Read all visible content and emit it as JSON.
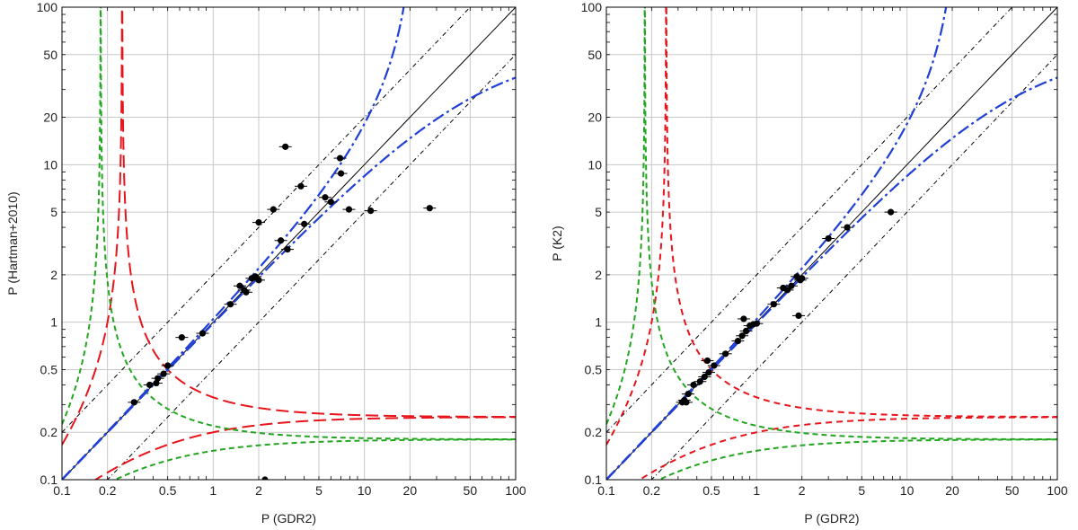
{
  "figure": {
    "description_title": ""
  },
  "colors": {
    "grid": "#c8c8c8",
    "frame": "#000000",
    "identity": "#000000",
    "harmonic": "#000000",
    "red": "#e8141b",
    "green": "#22a61f",
    "blue": "#1f3fd6",
    "points": "#000000"
  },
  "chart_data": [
    {
      "type": "scatter",
      "id": "left",
      "title": "",
      "xlabel": "P (GDR2)",
      "ylabel": "P (Hartman+2010)",
      "xscale": "log",
      "yscale": "log",
      "xlim": [
        0.1,
        100
      ],
      "ylim": [
        0.1,
        100
      ],
      "xticks": [
        0.1,
        0.2,
        0.5,
        1,
        2,
        5,
        10,
        20,
        50,
        100
      ],
      "xtick_labels": [
        "0.1",
        "0.2",
        "0.5",
        "1",
        "2",
        "5",
        "10",
        "20",
        "50",
        "100"
      ],
      "yticks": [
        0.1,
        0.2,
        0.5,
        1,
        2,
        5,
        10,
        20,
        50,
        100
      ],
      "ytick_labels": [
        "0.1",
        "0.2",
        "0.5",
        "1",
        "2",
        "5",
        "10",
        "20",
        "50",
        "100"
      ],
      "grid": true,
      "alias_frequencies": {
        "red_per_day": 4.0,
        "green_per_day": 5.55
      },
      "curves": [
        {
          "name": "y = x",
          "style": "solid",
          "color": "black"
        },
        {
          "name": "y = 2x / y = x/2 harmonics",
          "style": "dash-dot",
          "color": "black"
        },
        {
          "name": "beat alias 1/|1/x ± 1/0.25|",
          "style": "long-dash",
          "color": "red"
        },
        {
          "name": "beat alias 1/|1/x ± 1/0.18|",
          "style": "short-dash",
          "color": "green"
        },
        {
          "name": "spin-orbit branches",
          "style": "dash-dot-long",
          "color": "blue"
        }
      ],
      "points": [
        {
          "x": 0.3,
          "y": 0.31
        },
        {
          "x": 0.38,
          "y": 0.4
        },
        {
          "x": 0.42,
          "y": 0.41
        },
        {
          "x": 0.43,
          "y": 0.44
        },
        {
          "x": 0.47,
          "y": 0.47
        },
        {
          "x": 0.5,
          "y": 0.53
        },
        {
          "x": 0.62,
          "y": 0.8
        },
        {
          "x": 0.85,
          "y": 0.85
        },
        {
          "x": 1.3,
          "y": 1.3
        },
        {
          "x": 1.5,
          "y": 1.7
        },
        {
          "x": 1.6,
          "y": 1.6
        },
        {
          "x": 1.65,
          "y": 1.55
        },
        {
          "x": 1.8,
          "y": 1.9
        },
        {
          "x": 1.9,
          "y": 1.95
        },
        {
          "x": 2.0,
          "y": 1.85
        },
        {
          "x": 2.0,
          "y": 4.3
        },
        {
          "x": 2.5,
          "y": 5.2
        },
        {
          "x": 2.8,
          "y": 3.3
        },
        {
          "x": 3.0,
          "y": 13.0
        },
        {
          "x": 3.1,
          "y": 2.9
        },
        {
          "x": 3.8,
          "y": 7.3
        },
        {
          "x": 4.0,
          "y": 4.2
        },
        {
          "x": 5.5,
          "y": 6.2
        },
        {
          "x": 6.0,
          "y": 5.8
        },
        {
          "x": 6.9,
          "y": 11.0
        },
        {
          "x": 7.0,
          "y": 8.8
        },
        {
          "x": 7.9,
          "y": 5.2
        },
        {
          "x": 11.0,
          "y": 5.1
        },
        {
          "x": 27.0,
          "y": 5.3
        },
        {
          "x": 2.2,
          "y": 0.1
        }
      ]
    },
    {
      "type": "scatter",
      "id": "right",
      "title": "",
      "xlabel": "P (GDR2)",
      "ylabel": "P (K2)",
      "xscale": "log",
      "yscale": "log",
      "xlim": [
        0.1,
        100
      ],
      "ylim": [
        0.1,
        100
      ],
      "xticks": [
        0.1,
        0.2,
        0.5,
        1,
        2,
        5,
        10,
        20,
        50,
        100
      ],
      "xtick_labels": [
        "0.1",
        "0.2",
        "0.5",
        "1",
        "2",
        "5",
        "10",
        "20",
        "50",
        "100"
      ],
      "yticks": [
        0.1,
        0.2,
        0.5,
        1,
        2,
        5,
        10,
        20,
        50,
        100
      ],
      "ytick_labels": [
        "0.1",
        "0.2",
        "0.5",
        "1",
        "2",
        "5",
        "10",
        "20",
        "50",
        "100"
      ],
      "grid": true,
      "alias_frequencies": {
        "red_per_day": 4.0,
        "green_per_day": 5.55
      },
      "curves": [
        {
          "name": "y = x",
          "style": "solid",
          "color": "black"
        },
        {
          "name": "y = 2x / y = x/2 harmonics",
          "style": "dash-dot",
          "color": "black"
        },
        {
          "name": "beat alias 1/|1/x ± 1/0.25|",
          "style": "short-dash",
          "color": "red"
        },
        {
          "name": "beat alias 1/|1/x ± 1/0.18|",
          "style": "short-dash",
          "color": "green"
        },
        {
          "name": "spin-orbit branches",
          "style": "dash-dot-long",
          "color": "blue"
        }
      ],
      "points": [
        {
          "x": 0.32,
          "y": 0.31
        },
        {
          "x": 0.33,
          "y": 0.32
        },
        {
          "x": 0.34,
          "y": 0.31
        },
        {
          "x": 0.35,
          "y": 0.35
        },
        {
          "x": 0.38,
          "y": 0.4
        },
        {
          "x": 0.42,
          "y": 0.42
        },
        {
          "x": 0.45,
          "y": 0.45
        },
        {
          "x": 0.47,
          "y": 0.57
        },
        {
          "x": 0.48,
          "y": 0.48
        },
        {
          "x": 0.52,
          "y": 0.53
        },
        {
          "x": 0.62,
          "y": 0.63
        },
        {
          "x": 0.75,
          "y": 0.76
        },
        {
          "x": 0.8,
          "y": 0.82
        },
        {
          "x": 0.82,
          "y": 1.05
        },
        {
          "x": 0.85,
          "y": 0.88
        },
        {
          "x": 0.9,
          "y": 0.95
        },
        {
          "x": 0.95,
          "y": 0.97
        },
        {
          "x": 1.0,
          "y": 0.98
        },
        {
          "x": 1.3,
          "y": 1.3
        },
        {
          "x": 1.5,
          "y": 1.65
        },
        {
          "x": 1.6,
          "y": 1.6
        },
        {
          "x": 1.7,
          "y": 1.7
        },
        {
          "x": 1.85,
          "y": 1.95
        },
        {
          "x": 1.9,
          "y": 1.1
        },
        {
          "x": 1.95,
          "y": 1.85
        },
        {
          "x": 2.0,
          "y": 1.9
        },
        {
          "x": 3.0,
          "y": 3.4
        },
        {
          "x": 4.0,
          "y": 4.0
        },
        {
          "x": 7.8,
          "y": 5.0
        }
      ]
    }
  ]
}
